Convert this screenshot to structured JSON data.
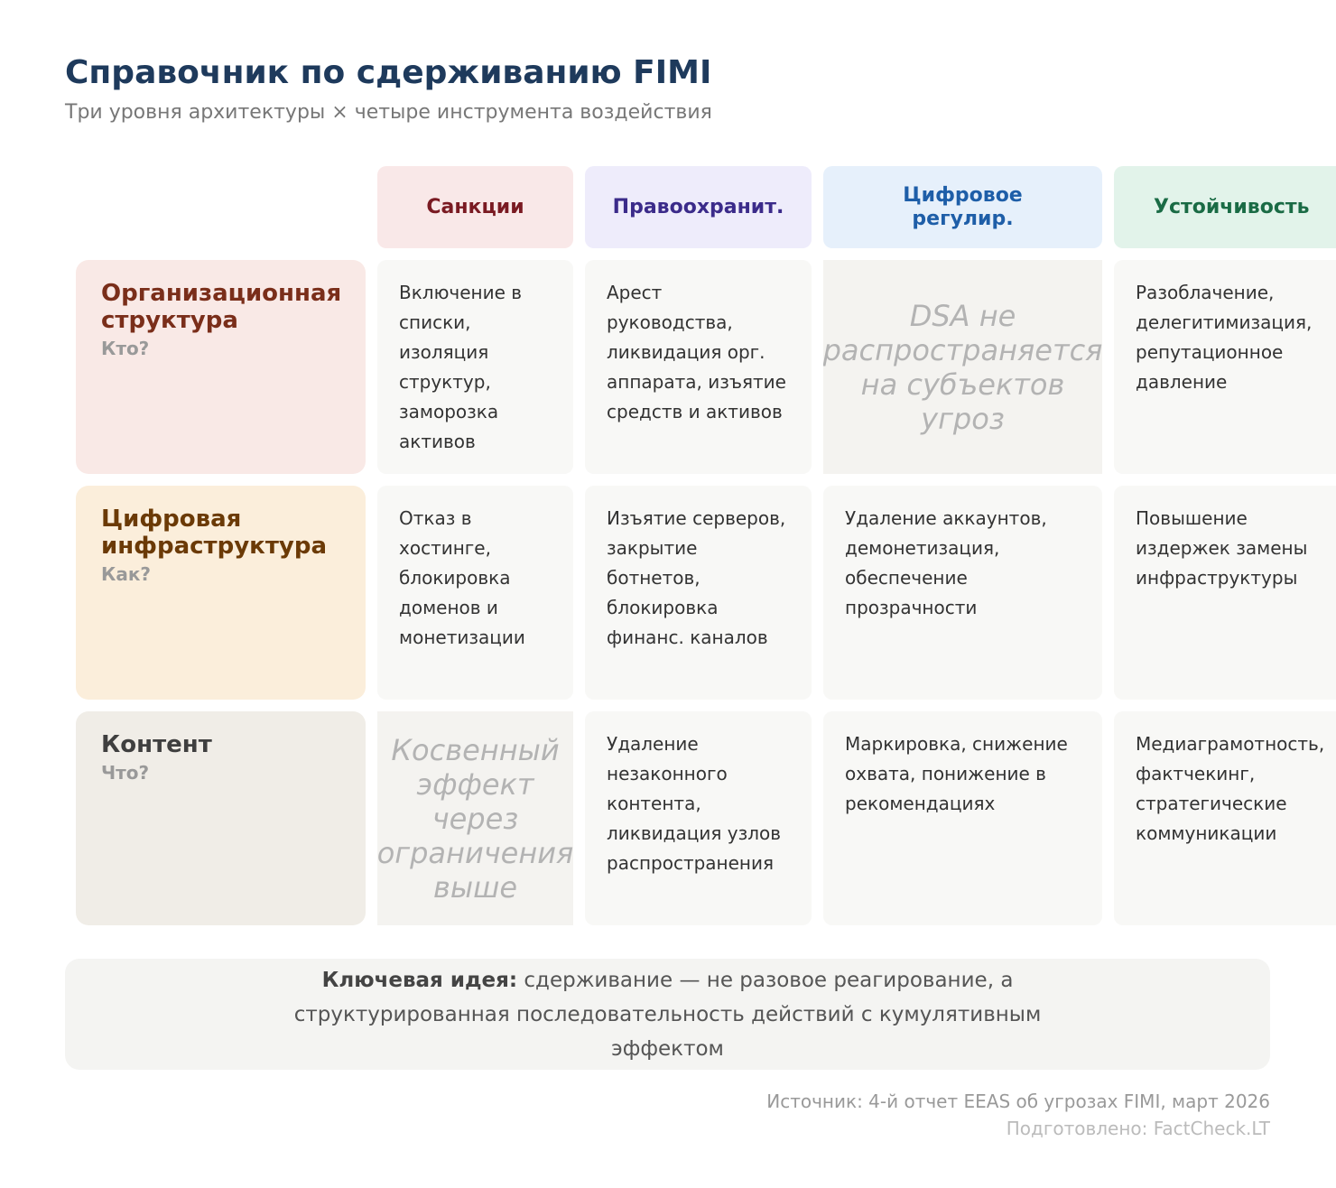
{
  "header": {
    "title": "Справочник по сдерживанию FIMI",
    "subtitle": "Три уровня архитектуры × четыре инструмента воздействия"
  },
  "table": {
    "columns": [
      "Санкции",
      "Правоохранит.",
      "Цифровое регулир.",
      "Устойчивость"
    ],
    "rows": [
      {
        "label": "Организационная структура",
        "question": "Кто?",
        "cells": [
          "Включение в списки, изоляция структур, заморозка активов",
          "Арест руководства, ликвидация орг. аппарата, изъятие средств и активов",
          "DSA не распространяется на субъектов угроз",
          "Разоблачение, делегитимизация, репутационное давление"
        ]
      },
      {
        "label": "Цифровая инфраструктура",
        "question": "Как?",
        "cells": [
          "Отказ в хостинге, блокировка доменов и монетизации",
          "Изъятие серверов, закрытие ботнетов, блокировка финанс. каналов",
          "Удаление аккаунтов, демонетизация, обеспечение прозрачности",
          "Повышение издержек замены инфраструктуры"
        ]
      },
      {
        "label": "Контент",
        "question": "Что?",
        "cells": [
          "Косвенный эффект через ограничения выше",
          "Удаление незаконного контента, ликвидация узлов распространения",
          "Маркировка, снижение охвата, понижение в рекомендациях",
          "Медиаграмотность, фактчекинг, стратегические коммуникации"
        ]
      }
    ]
  },
  "key_idea": {
    "label": "Ключевая идея:",
    "text": "сдерживание — не разовое реагирование, а структурированная последовательность действий с кумулятивным эффектом"
  },
  "footer": {
    "source": "Источник: 4-й отчет EEAS об угрозах FIMI, март 2026",
    "credit": "Подготовлено: FactCheck.LT"
  }
}
